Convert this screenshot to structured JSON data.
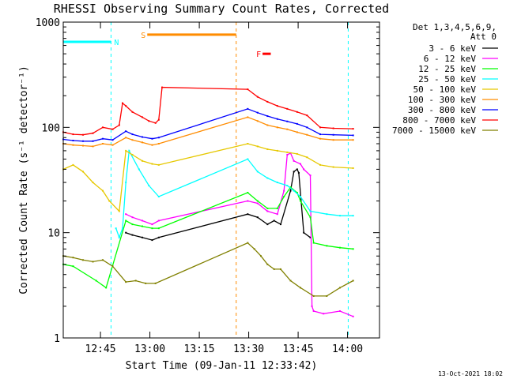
{
  "chart_data": {
    "type": "line",
    "title": "RHESSI Observing Summary Count Rates, Corrected",
    "ylabel": "Corrected Count Rate (s⁻¹ detector⁻¹)",
    "xlabel": "Start Time (09-Jan-11 12:33:42)",
    "yscale": "log",
    "ylim": [
      1,
      1000
    ],
    "xlim_minutes_from_start": [
      0,
      96
    ],
    "x_unit": "minutes after 12:33:42",
    "grid": false,
    "legend_position": "right",
    "x_ticks": [
      {
        "label": "12:45",
        "min": 11.3
      },
      {
        "label": "13:00",
        "min": 26.3
      },
      {
        "label": "13:15",
        "min": 41.3
      },
      {
        "label": "13:30",
        "min": 56.3
      },
      {
        "label": "13:45",
        "min": 71.3
      },
      {
        "label": "14:00",
        "min": 86.3
      }
    ],
    "y_ticks": [
      {
        "label": "1",
        "value": 1
      },
      {
        "label": "10",
        "value": 10
      },
      {
        "label": "100",
        "value": 100
      },
      {
        "label": "1000",
        "value": 1000
      }
    ],
    "legend_header": [
      "Det 1,3,4,5,6,9,",
      "Att 0"
    ],
    "series": [
      {
        "name": "3 - 6 keV",
        "color": "#000000",
        "points": [
          [
            19,
            10
          ],
          [
            21,
            9.5
          ],
          [
            24,
            9
          ],
          [
            27,
            8.5
          ],
          [
            29,
            9
          ],
          [
            56,
            15
          ],
          [
            59,
            14
          ],
          [
            62,
            12
          ],
          [
            64,
            13
          ],
          [
            66,
            12
          ],
          [
            69,
            25
          ],
          [
            70,
            38
          ],
          [
            71,
            40
          ],
          [
            71.5,
            37
          ],
          [
            73,
            10
          ],
          [
            75,
            9
          ]
        ]
      },
      {
        "name": "6 - 12 keV",
        "color": "#ff00ff",
        "points": [
          [
            19,
            15
          ],
          [
            21,
            14
          ],
          [
            24,
            13
          ],
          [
            27,
            12
          ],
          [
            29,
            13
          ],
          [
            56,
            20
          ],
          [
            59,
            19
          ],
          [
            62,
            16
          ],
          [
            65,
            15
          ],
          [
            67,
            25
          ],
          [
            68,
            55
          ],
          [
            69,
            57
          ],
          [
            70,
            48
          ],
          [
            72,
            45
          ],
          [
            73,
            40
          ],
          [
            75,
            35
          ],
          [
            75.5,
            2
          ],
          [
            76,
            1.8
          ],
          [
            79,
            1.7
          ],
          [
            84,
            1.8
          ],
          [
            88,
            1.6
          ]
        ]
      },
      {
        "name": "12 - 25 keV",
        "color": "#00ff00",
        "points": [
          [
            0,
            5
          ],
          [
            3,
            4.8
          ],
          [
            10,
            3.5
          ],
          [
            13,
            3
          ],
          [
            19,
            13
          ],
          [
            21,
            12
          ],
          [
            24,
            11.5
          ],
          [
            27,
            11
          ],
          [
            29,
            11
          ],
          [
            56,
            24
          ],
          [
            59,
            20
          ],
          [
            62,
            17
          ],
          [
            65,
            17
          ],
          [
            67,
            22
          ],
          [
            69,
            27
          ],
          [
            71,
            24
          ],
          [
            72,
            20
          ],
          [
            75,
            14
          ],
          [
            76,
            8
          ],
          [
            80,
            7.5
          ],
          [
            84,
            7.2
          ],
          [
            88,
            7
          ]
        ]
      },
      {
        "name": "25 - 50 keV",
        "color": "#00ffff",
        "points": [
          [
            16,
            11
          ],
          [
            17,
            9
          ],
          [
            18,
            11
          ],
          [
            19,
            30
          ],
          [
            20,
            60
          ],
          [
            23,
            40
          ],
          [
            26,
            28
          ],
          [
            29,
            22
          ],
          [
            56,
            50
          ],
          [
            59,
            38
          ],
          [
            62,
            33
          ],
          [
            65,
            30
          ],
          [
            68,
            28
          ],
          [
            70,
            25
          ],
          [
            72,
            22
          ],
          [
            75,
            16
          ],
          [
            80,
            15
          ],
          [
            84,
            14.5
          ],
          [
            88,
            14.5
          ]
        ]
      },
      {
        "name": "50 - 100 keV",
        "color": "#e6c800",
        "points": [
          [
            0,
            40
          ],
          [
            3,
            44
          ],
          [
            6,
            38
          ],
          [
            9,
            30
          ],
          [
            12,
            25
          ],
          [
            14,
            20
          ],
          [
            17,
            16
          ],
          [
            19,
            60
          ],
          [
            21,
            55
          ],
          [
            24,
            48
          ],
          [
            27,
            45
          ],
          [
            29,
            44
          ],
          [
            56,
            70
          ],
          [
            59,
            66
          ],
          [
            62,
            62
          ],
          [
            65,
            60
          ],
          [
            68,
            58
          ],
          [
            71,
            56
          ],
          [
            74,
            52
          ],
          [
            78,
            44
          ],
          [
            82,
            42
          ],
          [
            88,
            41
          ]
        ]
      },
      {
        "name": "100 - 300 keV",
        "color": "#ff8c00",
        "points": [
          [
            0,
            70
          ],
          [
            3,
            68
          ],
          [
            6,
            67
          ],
          [
            9,
            66
          ],
          [
            12,
            70
          ],
          [
            15,
            68
          ],
          [
            19,
            80
          ],
          [
            21,
            76
          ],
          [
            24,
            72
          ],
          [
            27,
            68
          ],
          [
            29,
            70
          ],
          [
            56,
            125
          ],
          [
            59,
            115
          ],
          [
            62,
            105
          ],
          [
            65,
            100
          ],
          [
            68,
            96
          ],
          [
            71,
            90
          ],
          [
            74,
            85
          ],
          [
            78,
            78
          ],
          [
            82,
            76
          ],
          [
            88,
            76
          ]
        ]
      },
      {
        "name": "300 - 800 keV",
        "color": "#0000ff",
        "points": [
          [
            0,
            77
          ],
          [
            3,
            75
          ],
          [
            6,
            74
          ],
          [
            9,
            74
          ],
          [
            12,
            78
          ],
          [
            15,
            76
          ],
          [
            19,
            92
          ],
          [
            21,
            86
          ],
          [
            24,
            81
          ],
          [
            27,
            78
          ],
          [
            29,
            80
          ],
          [
            56,
            150
          ],
          [
            59,
            138
          ],
          [
            62,
            128
          ],
          [
            65,
            120
          ],
          [
            68,
            114
          ],
          [
            71,
            108
          ],
          [
            74,
            100
          ],
          [
            78,
            86
          ],
          [
            82,
            85
          ],
          [
            88,
            84
          ]
        ]
      },
      {
        "name": "800 - 7000 keV",
        "color": "#ff0000",
        "points": [
          [
            0,
            90
          ],
          [
            3,
            86
          ],
          [
            6,
            85
          ],
          [
            9,
            88
          ],
          [
            12,
            100
          ],
          [
            15,
            96
          ],
          [
            17,
            105
          ],
          [
            18,
            170
          ],
          [
            19,
            160
          ],
          [
            21,
            140
          ],
          [
            24,
            125
          ],
          [
            26,
            115
          ],
          [
            28,
            110
          ],
          [
            29,
            118
          ],
          [
            30,
            240
          ],
          [
            56,
            230
          ],
          [
            59,
            195
          ],
          [
            62,
            175
          ],
          [
            65,
            160
          ],
          [
            68,
            150
          ],
          [
            71,
            140
          ],
          [
            74,
            130
          ],
          [
            78,
            100
          ],
          [
            82,
            98
          ],
          [
            88,
            97
          ]
        ]
      },
      {
        "name": "7000 - 15000 keV",
        "color": "#808000",
        "points": [
          [
            0,
            6
          ],
          [
            3,
            5.8
          ],
          [
            6,
            5.5
          ],
          [
            9,
            5.3
          ],
          [
            12,
            5.5
          ],
          [
            15,
            4.8
          ],
          [
            19,
            3.4
          ],
          [
            22,
            3.5
          ],
          [
            25,
            3.3
          ],
          [
            28,
            3.3
          ],
          [
            56,
            8
          ],
          [
            58,
            7
          ],
          [
            60,
            6
          ],
          [
            62,
            5
          ],
          [
            64,
            4.5
          ],
          [
            66,
            4.5
          ],
          [
            69,
            3.5
          ],
          [
            72,
            3
          ],
          [
            76,
            2.5
          ],
          [
            80,
            2.5
          ],
          [
            84,
            3
          ],
          [
            88,
            3.5
          ]
        ]
      }
    ],
    "annotations": [
      {
        "label": "N",
        "color": "#00ffff",
        "bar_min": [
          0,
          14.5
        ],
        "bar_value": 650,
        "dashed_edges_min": [
          14.5,
          86.5
        ]
      },
      {
        "label": "S",
        "color": "#ff8c00",
        "bar_min": [
          25.5,
          52.5
        ],
        "bar_value": 760,
        "dashed_edges_min": [
          52.5
        ]
      },
      {
        "label": "F",
        "color": "#ff0000",
        "bar_min": [
          60.5,
          63
        ],
        "bar_value": 500
      }
    ]
  },
  "footer": {
    "timestamp": "13-Oct-2021 18:02"
  }
}
